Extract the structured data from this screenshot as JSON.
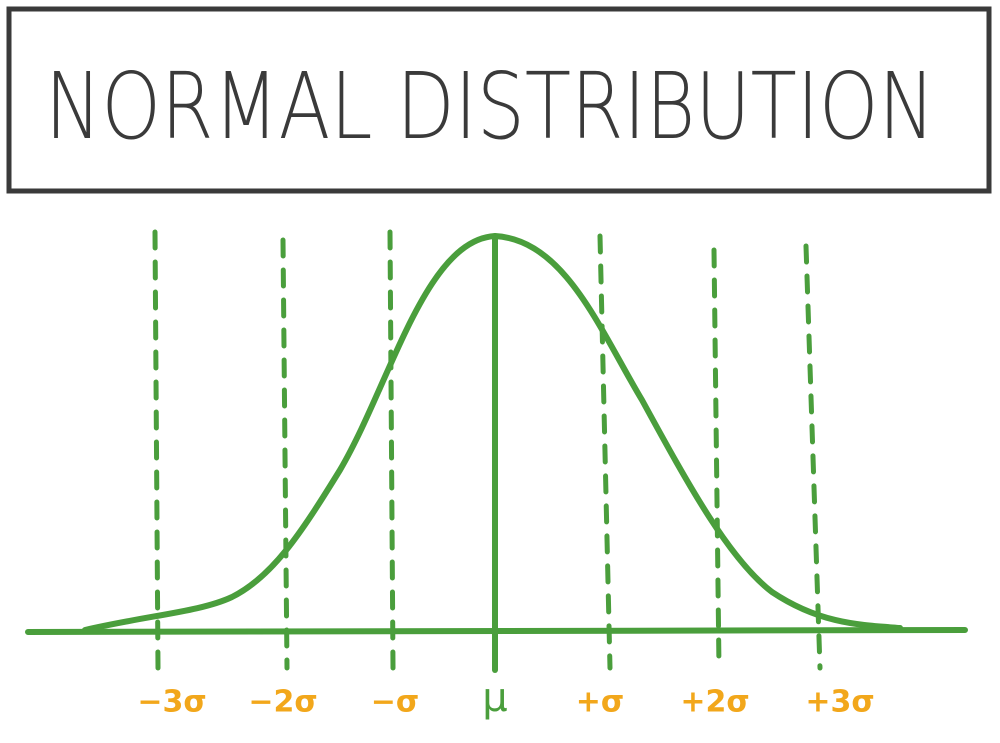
{
  "title": "NORMAL DISTRIBUTION",
  "labels": [
    "−3σ",
    "−2σ",
    "−σ",
    "μ",
    "+σ",
    "+2σ",
    "+3σ"
  ]
}
